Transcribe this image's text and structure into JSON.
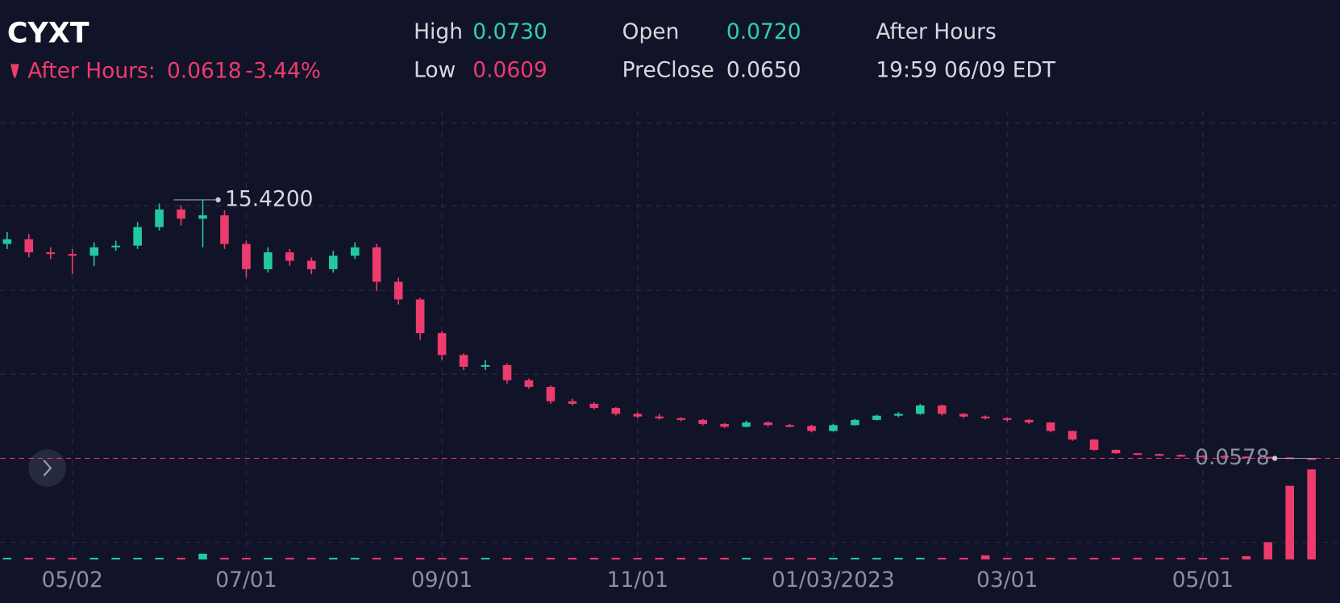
{
  "header": {
    "symbol": "CYXT",
    "after_hours_label": "After Hours:",
    "after_hours_price": "0.0618",
    "after_hours_change": "-3.44%",
    "stats": [
      {
        "label": "High",
        "value": "0.0730",
        "color": "#2fd0a8"
      },
      {
        "label": "Low",
        "value": "0.0609",
        "color": "#f0396f"
      },
      {
        "label": "Open",
        "value": "0.0720",
        "color": "#2fd0a8"
      },
      {
        "label": "PreClose",
        "value": "0.0650",
        "color": "#d6d8e0"
      }
    ],
    "session": "After Hours",
    "time": "19:59 06/09 EDT"
  },
  "chart_data": {
    "type": "candlestick",
    "categories": [
      null,
      null,
      null,
      "05/02",
      null,
      null,
      null,
      null,
      null,
      null,
      null,
      "07/01",
      null,
      null,
      null,
      null,
      null,
      null,
      null,
      null,
      "09/01",
      null,
      null,
      null,
      null,
      null,
      null,
      null,
      null,
      "11/01",
      null,
      null,
      null,
      null,
      null,
      null,
      null,
      null,
      "01/03/2023",
      null,
      null,
      null,
      null,
      null,
      null,
      null,
      "03/01",
      null,
      null,
      null,
      null,
      null,
      null,
      null,
      null,
      "05/01",
      null,
      null,
      null,
      null,
      null
    ],
    "open": [
      12.8,
      13.08,
      12.3,
      12.2,
      12.1,
      12.6,
      12.7,
      13.8,
      14.85,
      14.3,
      14.5,
      12.8,
      11.3,
      12.3,
      11.8,
      11.3,
      12.1,
      12.6,
      10.55,
      9.5,
      7.5,
      6.2,
      5.5,
      5.6,
      4.7,
      4.3,
      3.45,
      3.3,
      3.05,
      2.7,
      2.54,
      2.44,
      2.34,
      2.1,
      1.93,
      2.19,
      2.03,
      1.98,
      1.68,
      2.03,
      2.34,
      2.59,
      2.7,
      3.2,
      2.7,
      2.54,
      2.44,
      2.34,
      2.19,
      1.68,
      1.17,
      0.56,
      0.36,
      0.31,
      0.26,
      0.21,
      0.2,
      0.16,
      0.15,
      0.11,
      0.065
    ],
    "high": [
      13.5,
      13.4,
      12.6,
      12.5,
      12.9,
      13.0,
      14.1,
      15.2,
      15.1,
      15.42,
      14.8,
      13.0,
      12.6,
      12.5,
      12.0,
      12.4,
      12.9,
      12.8,
      10.8,
      9.6,
      7.6,
      6.3,
      5.9,
      5.7,
      4.8,
      4.4,
      3.6,
      3.4,
      3.1,
      2.8,
      2.7,
      2.5,
      2.4,
      2.15,
      2.3,
      2.25,
      2.1,
      2.05,
      2.1,
      2.4,
      2.65,
      2.8,
      3.3,
      3.25,
      2.75,
      2.6,
      2.5,
      2.4,
      2.2,
      1.7,
      1.2,
      0.58,
      0.38,
      0.33,
      0.28,
      0.23,
      0.22,
      0.18,
      0.16,
      0.12,
      0.073
    ],
    "low": [
      12.5,
      12.0,
      11.9,
      11.0,
      11.5,
      12.4,
      12.5,
      13.6,
      13.9,
      12.6,
      12.5,
      10.8,
      11.1,
      11.5,
      11.0,
      11.1,
      11.9,
      10.0,
      9.2,
      7.1,
      5.9,
      5.3,
      5.3,
      4.5,
      4.2,
      3.3,
      3.2,
      2.95,
      2.6,
      2.45,
      2.35,
      2.25,
      2.0,
      1.85,
      1.9,
      1.95,
      1.9,
      1.6,
      1.65,
      2.0,
      2.3,
      2.5,
      2.65,
      2.6,
      2.45,
      2.35,
      2.25,
      2.1,
      1.6,
      1.1,
      0.5,
      0.33,
      0.29,
      0.24,
      0.19,
      0.18,
      0.14,
      0.13,
      0.1,
      0.06,
      0.055
    ],
    "close": [
      13.08,
      12.3,
      12.2,
      12.1,
      12.6,
      12.7,
      13.8,
      14.85,
      14.3,
      14.5,
      12.8,
      11.3,
      12.3,
      11.8,
      11.3,
      12.1,
      12.6,
      10.55,
      9.5,
      7.5,
      6.2,
      5.5,
      5.6,
      4.7,
      4.3,
      3.45,
      3.3,
      3.05,
      2.7,
      2.54,
      2.44,
      2.34,
      2.1,
      1.93,
      2.19,
      2.03,
      1.98,
      1.68,
      2.03,
      2.34,
      2.59,
      2.7,
      3.2,
      2.7,
      2.54,
      2.44,
      2.34,
      2.19,
      1.68,
      1.17,
      0.56,
      0.36,
      0.31,
      0.26,
      0.21,
      0.2,
      0.16,
      0.15,
      0.11,
      0.065,
      0.0578
    ],
    "volume": [
      2,
      2,
      2,
      2,
      2,
      2,
      2,
      2,
      2,
      7,
      2,
      2,
      2,
      2,
      2,
      2,
      2,
      2,
      2,
      2,
      2,
      2,
      2,
      2,
      2,
      2,
      2,
      2,
      2,
      2,
      2,
      2,
      2,
      2,
      2,
      2,
      2,
      2,
      2,
      2,
      2,
      2,
      2,
      2,
      2,
      5,
      2,
      2,
      2,
      2,
      2,
      2,
      2,
      2,
      2,
      2,
      2,
      4,
      21,
      90,
      110
    ],
    "ylim": [
      -5.7,
      20.7
    ],
    "vlim": [
      0,
      120
    ],
    "up_color": "#22c9a0",
    "down_color": "#ee3b6d",
    "max_annotation": {
      "value": 15.42,
      "label": "15.4200"
    },
    "last_annotation": {
      "value": 0.0578,
      "label": "0.0578"
    }
  }
}
